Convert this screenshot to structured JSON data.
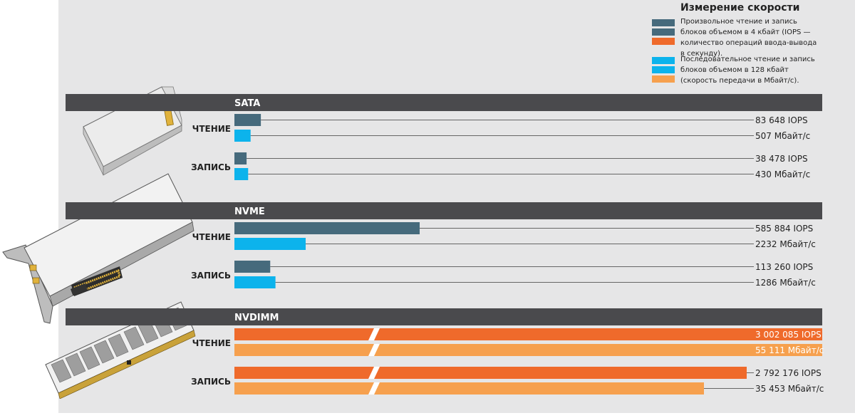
{
  "colors": {
    "random_iops": "#466a7c",
    "random_iops_nvdimm": "#ef6a2b",
    "sequential": "#0cb3ec",
    "sequential_nvdimm": "#f6a04e",
    "section_bar": "#4a4a4d",
    "panel_bg": "#e6e6e7"
  },
  "legend": {
    "title": "Измерение скорости",
    "random_text": "Произвольное чтение и запись блоков объемом в 4 кбайт (IOPS — количество операций ввода-вывода в секунду).",
    "sequential_text": "Последовательное чтение и запись блоков объемом в 128 кбайт (скорость передачи в Мбайт/с)."
  },
  "icons": [
    "sata-ssd-image",
    "nvme-card-image",
    "nvdimm-module-image"
  ],
  "chart_data": {
    "type": "bar",
    "orientation": "horizontal",
    "sections": [
      {
        "name": "SATA",
        "groups": [
          {
            "label": "ЧТЕНИЕ",
            "bars": [
              {
                "metric": "IOPS",
                "value": 83648,
                "label": "83 648 IOPS"
              },
              {
                "metric": "Мбайт/с",
                "value": 507,
                "label": "507 Мбайт/с"
              }
            ]
          },
          {
            "label": "ЗАПИСЬ",
            "bars": [
              {
                "metric": "IOPS",
                "value": 38478,
                "label": "38 478 IOPS"
              },
              {
                "metric": "Мбайт/с",
                "value": 430,
                "label": "430 Мбайт/с"
              }
            ]
          }
        ]
      },
      {
        "name": "NVME",
        "groups": [
          {
            "label": "ЧТЕНИЕ",
            "bars": [
              {
                "metric": "IOPS",
                "value": 585884,
                "label": "585 884 IOPS"
              },
              {
                "metric": "Мбайт/с",
                "value": 2232,
                "label": "2232 Мбайт/с"
              }
            ]
          },
          {
            "label": "ЗАПИСЬ",
            "bars": [
              {
                "metric": "IOPS",
                "value": 113260,
                "label": "113 260 IOPS"
              },
              {
                "metric": "Мбайт/с",
                "value": 1286,
                "label": "1286 Мбайт/с"
              }
            ]
          }
        ]
      },
      {
        "name": "NVDIMM",
        "axis_break": true,
        "groups": [
          {
            "label": "ЧТЕНИЕ",
            "bars": [
              {
                "metric": "IOPS",
                "value": 3002085,
                "label": "3 002 085 IOPS"
              },
              {
                "metric": "Мбайт/с",
                "value": 55111,
                "label": "55 111 Мбайт/с"
              }
            ]
          },
          {
            "label": "ЗАПИСЬ",
            "bars": [
              {
                "metric": "IOPS",
                "value": 2792176,
                "label": "2 792 176 IOPS"
              },
              {
                "metric": "Мбайт/с",
                "value": 35453,
                "label": "35 453 Мбайт/с"
              }
            ]
          }
        ]
      }
    ]
  }
}
